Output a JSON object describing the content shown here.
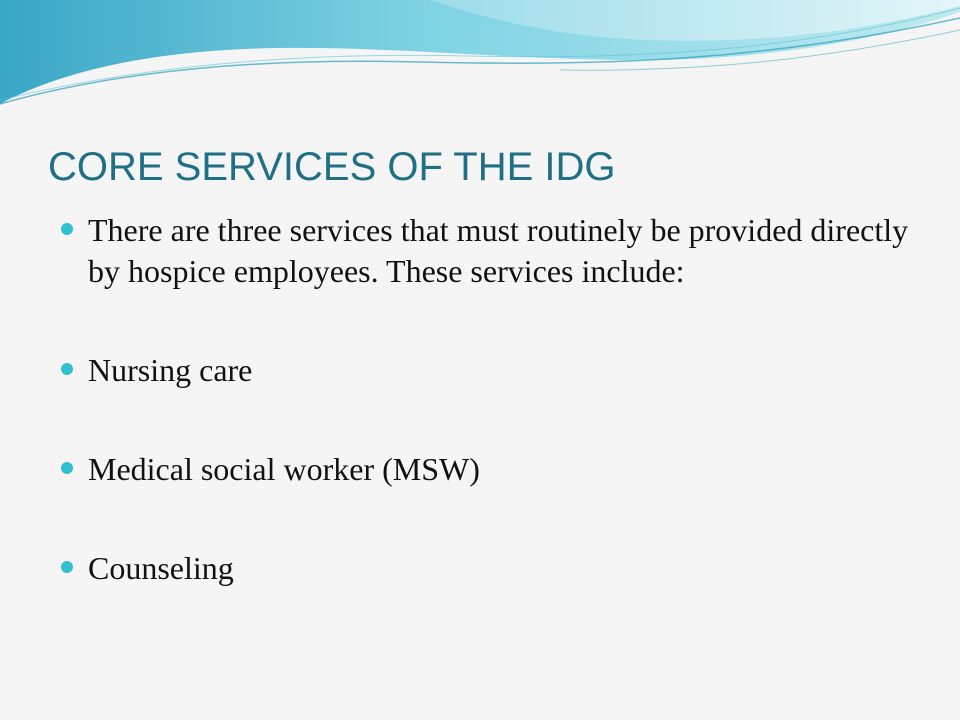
{
  "slide": {
    "title": "CORE SERVICES OF THE IDG",
    "bullets": [
      "There are three services that must routinely be provided directly by hospice employees. These services include:",
      "Nursing care",
      "Medical social worker (MSW)",
      "Counseling"
    ]
  },
  "colors": {
    "title": "#1f6f86",
    "bullet": "#2fc1cf",
    "wave_light": "#bfeaf0",
    "wave_mid": "#7fd3e3",
    "wave_dark": "#3aa6c6"
  }
}
